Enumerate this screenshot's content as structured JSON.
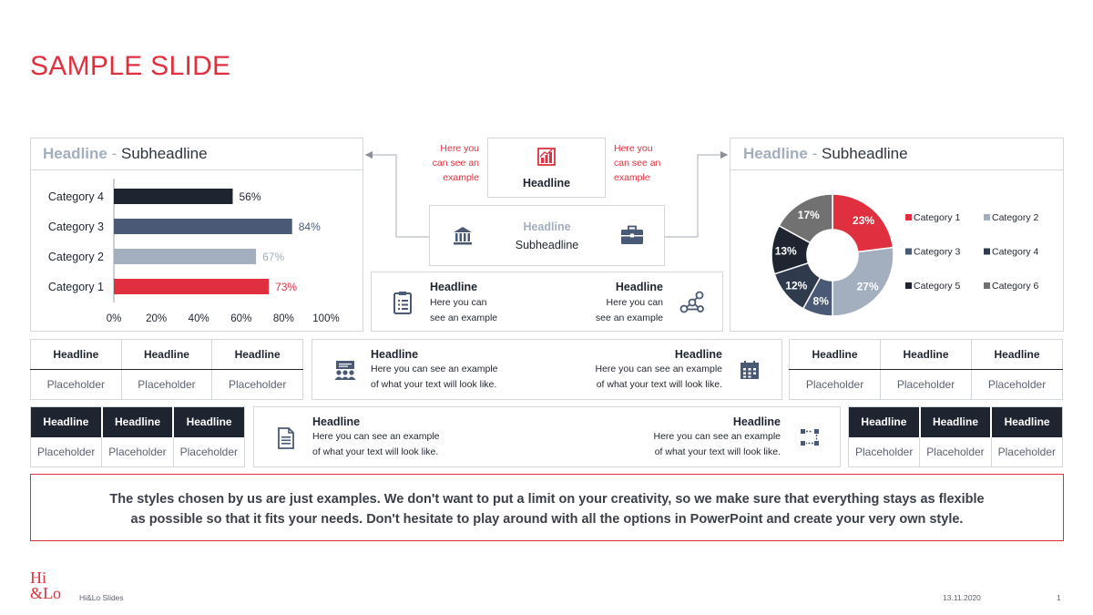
{
  "title": "SAMPLE SLIDE",
  "colors": {
    "accent": "#e0303f",
    "dark": "#1f2530",
    "slate": "#4a5a76",
    "light_blue": "#a3aebf",
    "gray": "#717171"
  },
  "left_panel": {
    "headline": "Headline",
    "separator": "-",
    "subheadline": "Subheadline"
  },
  "right_panel": {
    "headline": "Headline",
    "separator": "-",
    "subheadline": "Subheadline"
  },
  "center": {
    "top_box": {
      "headline": "Headline",
      "icon": "chart-icon"
    },
    "left_note": [
      "Here you",
      "can see an",
      "example"
    ],
    "right_note": [
      "Here you",
      "can see an",
      "example"
    ],
    "mid_box": {
      "headline": "Headline",
      "subheadline": "Subheadline",
      "left_icon": "bank-icon",
      "right_icon": "briefcase-icon"
    },
    "info_box": {
      "left_headline": "Headline",
      "left_text": [
        "Here you can",
        "see an example"
      ],
      "right_headline": "Headline",
      "right_text": [
        "Here you can",
        "see an example"
      ],
      "left_icon": "clipboard-icon",
      "right_icon": "network-icon"
    }
  },
  "wide_box_1": {
    "left_headline": "Headline",
    "left_text": [
      "Here you can see an example",
      "of what your text will look like."
    ],
    "right_headline": "Headline",
    "right_text": [
      "Here you can see an example",
      "of what your text will look like."
    ],
    "left_icon": "presentation-team-icon",
    "right_icon": "calendar-icon"
  },
  "wide_box_2": {
    "left_headline": "Headline",
    "left_text": [
      "Here you can see an example",
      "of what your text will look like."
    ],
    "right_headline": "Headline",
    "right_text": [
      "Here you can see an example",
      "of what your text will look like."
    ],
    "left_icon": "document-icon",
    "right_icon": "flow-icon"
  },
  "table_left_light": {
    "headers": [
      "Headline",
      "Headline",
      "Headline"
    ],
    "cells": [
      "Placeholder",
      "Placeholder",
      "Placeholder"
    ]
  },
  "table_right_light": {
    "headers": [
      "Headline",
      "Headline",
      "Headline"
    ],
    "cells": [
      "Placeholder",
      "Placeholder",
      "Placeholder"
    ]
  },
  "table_left_dark": {
    "headers": [
      "Headline",
      "Headline",
      "Headline"
    ],
    "cells": [
      "Placeholder",
      "Placeholder",
      "Placeholder"
    ]
  },
  "table_right_dark": {
    "headers": [
      "Headline",
      "Headline",
      "Headline"
    ],
    "cells": [
      "Placeholder",
      "Placeholder",
      "Placeholder"
    ]
  },
  "statement": [
    "The styles chosen by us are just examples. We don't want to put a limit on your creativity, so we make sure that everything stays as flexible",
    "as possible so that it fits your needs. Don't hesitate to play around with all the options in PowerPoint and create your very own style."
  ],
  "footer": {
    "logo_top": "Hi",
    "logo_bottom": "&Lo",
    "brand": "Hi&Lo Slides",
    "date": "13.11.2020",
    "page": "1"
  },
  "chart_data": [
    {
      "type": "bar",
      "orientation": "horizontal",
      "categories": [
        "Category 4",
        "Category 3",
        "Category 2",
        "Category 1"
      ],
      "values": [
        56,
        84,
        67,
        73
      ],
      "value_labels": [
        "56%",
        "84%",
        "67%",
        "73%"
      ],
      "colors": [
        "#1f2530",
        "#4a5a76",
        "#a3aebf",
        "#e0303f"
      ],
      "label_colors": [
        "#1f2530",
        "#4a5a76",
        "#a3aebf",
        "#e0303f"
      ],
      "xlim": [
        0,
        100
      ],
      "xticks": [
        "0%",
        "20%",
        "40%",
        "60%",
        "80%",
        "100%"
      ],
      "grid": false
    },
    {
      "type": "pie",
      "donut": true,
      "categories": [
        "Category 1",
        "Category 2",
        "Category 3",
        "Category 4",
        "Category 5",
        "Category 6"
      ],
      "values": [
        23,
        27,
        8,
        12,
        13,
        17
      ],
      "value_labels": [
        "23%",
        "27%",
        "8%",
        "12%",
        "13%",
        "17%"
      ],
      "colors": [
        "#e0303f",
        "#a3aebf",
        "#4a5a76",
        "#2f3a4c",
        "#1f2530",
        "#717171"
      ],
      "legend": "right"
    }
  ]
}
